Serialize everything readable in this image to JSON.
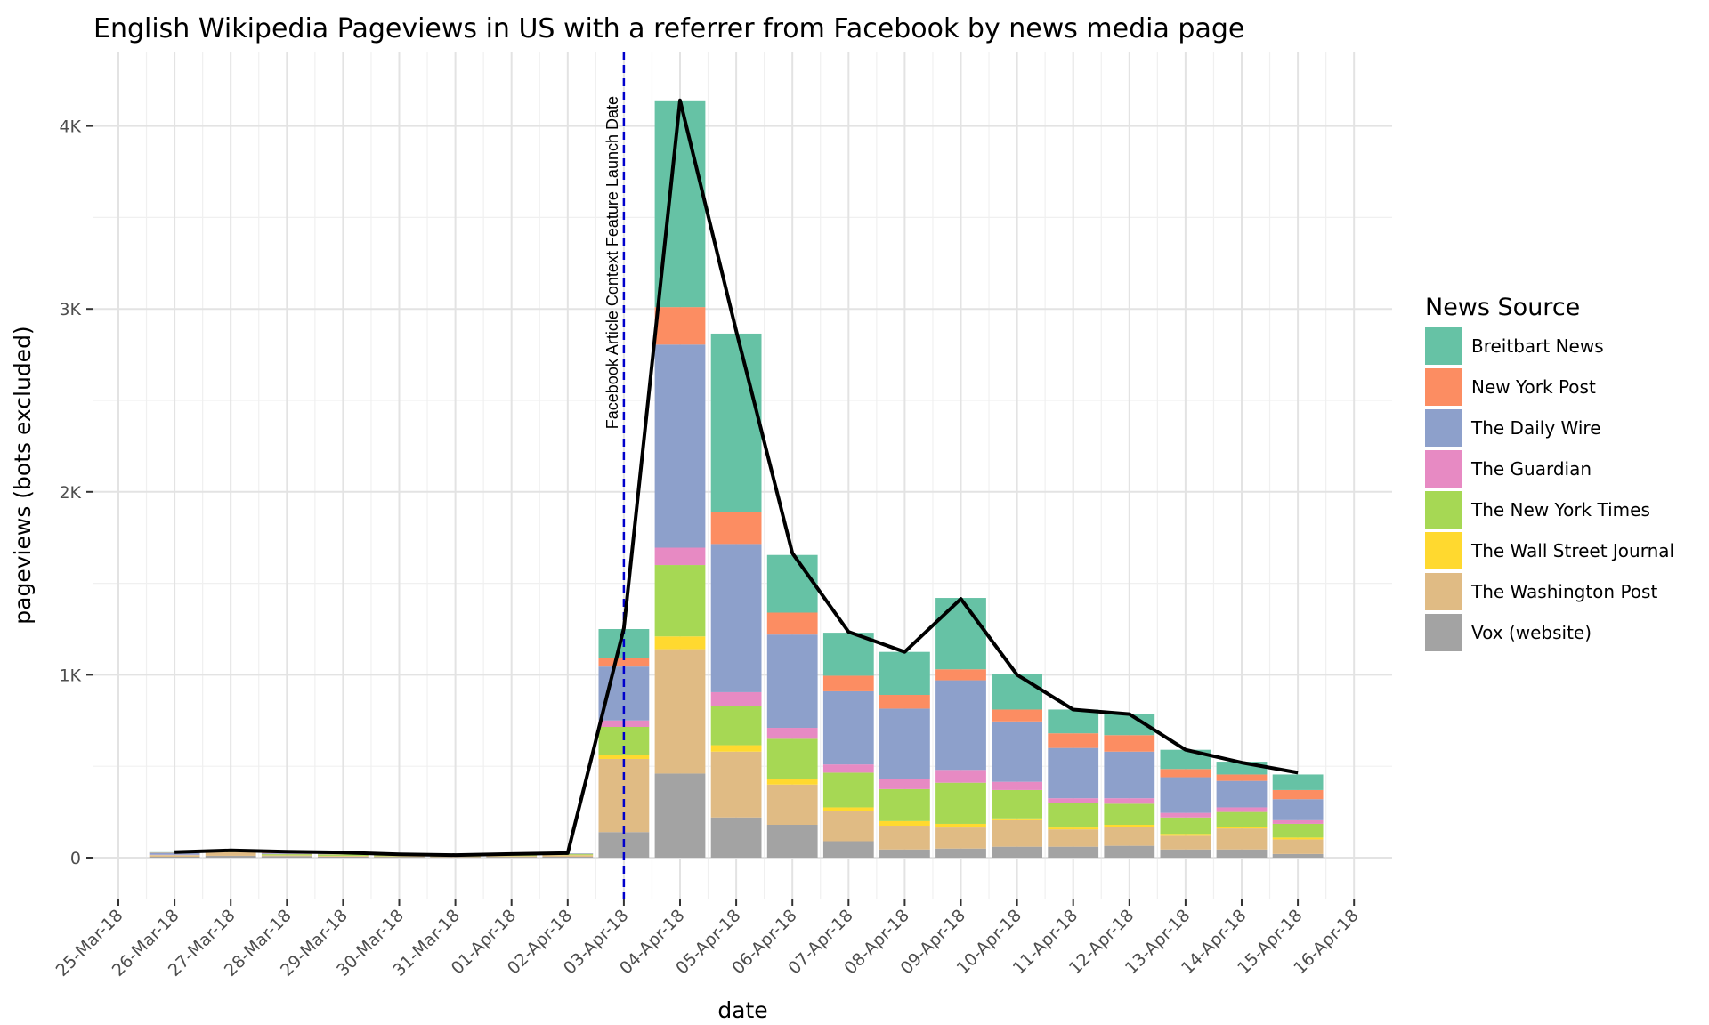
{
  "chart_data": {
    "type": "bar",
    "title": "English Wikipedia Pageviews in US with a referrer from Facebook by news media page",
    "xlabel": "date",
    "ylabel": "pageviews (bots excluded)",
    "x_tick_labels": [
      "25-Mar-18",
      "26-Mar-18",
      "27-Mar-18",
      "28-Mar-18",
      "29-Mar-18",
      "30-Mar-18",
      "31-Mar-18",
      "01-Apr-18",
      "02-Apr-18",
      "03-Apr-18",
      "04-Apr-18",
      "05-Apr-18",
      "06-Apr-18",
      "07-Apr-18",
      "08-Apr-18",
      "09-Apr-18",
      "10-Apr-18",
      "11-Apr-18",
      "12-Apr-18",
      "13-Apr-18",
      "14-Apr-18",
      "15-Apr-18",
      "16-Apr-18"
    ],
    "y_tick_labels": [
      "0",
      "1K",
      "2K",
      "3K",
      "4K"
    ],
    "y_ticks": [
      0,
      1000,
      2000,
      3000,
      4000
    ],
    "ylim": [
      -250,
      4380
    ],
    "xlim": [
      "24-Mar-18",
      "16-Apr-18"
    ],
    "grid": true,
    "stacked": true,
    "categories": [
      "26-Mar-18",
      "27-Mar-18",
      "28-Mar-18",
      "29-Mar-18",
      "30-Mar-18",
      "31-Mar-18",
      "01-Apr-18",
      "02-Apr-18",
      "03-Apr-18",
      "04-Apr-18",
      "05-Apr-18",
      "06-Apr-18",
      "07-Apr-18",
      "08-Apr-18",
      "09-Apr-18",
      "10-Apr-18",
      "11-Apr-18",
      "12-Apr-18",
      "13-Apr-18",
      "14-Apr-18",
      "15-Apr-18"
    ],
    "series": [
      {
        "name": "Vox (website)",
        "color": "#a3a3a3",
        "values": [
          5,
          10,
          8,
          5,
          4,
          3,
          4,
          5,
          140,
          460,
          220,
          180,
          90,
          45,
          50,
          60,
          60,
          65,
          45,
          45,
          20
        ]
      },
      {
        "name": "The Washington Post",
        "color": "#e0bb84",
        "values": [
          5,
          20,
          4,
          4,
          3,
          3,
          4,
          8,
          400,
          680,
          360,
          220,
          165,
          130,
          115,
          145,
          95,
          105,
          75,
          115,
          80
        ]
      },
      {
        "name": "The Wall Street Journal",
        "color": "#ffd92f",
        "values": [
          1,
          1,
          1,
          1,
          1,
          1,
          1,
          1,
          20,
          70,
          35,
          30,
          20,
          25,
          20,
          10,
          10,
          10,
          10,
          10,
          10
        ]
      },
      {
        "name": "The New York Times",
        "color": "#a6d854",
        "values": [
          2,
          3,
          6,
          8,
          4,
          3,
          3,
          5,
          155,
          390,
          215,
          220,
          190,
          175,
          225,
          155,
          135,
          115,
          90,
          80,
          75
        ]
      },
      {
        "name": "The Guardian",
        "color": "#e78ac3",
        "values": [
          3,
          3,
          2,
          2,
          1,
          1,
          1,
          1,
          35,
          95,
          75,
          60,
          45,
          55,
          70,
          45,
          25,
          30,
          25,
          25,
          20
        ]
      },
      {
        "name": "The Daily Wire",
        "color": "#8da0cb",
        "values": [
          10,
          3,
          4,
          4,
          2,
          2,
          2,
          2,
          295,
          1110,
          810,
          510,
          400,
          385,
          490,
          330,
          275,
          255,
          195,
          145,
          115
        ]
      },
      {
        "name": "New York Post",
        "color": "#fc8d62",
        "values": [
          2,
          2,
          2,
          2,
          1,
          1,
          1,
          1,
          45,
          205,
          175,
          120,
          85,
          75,
          60,
          65,
          80,
          90,
          45,
          35,
          50
        ]
      },
      {
        "name": "Breitbart News",
        "color": "#66c2a5",
        "values": [
          2,
          2,
          3,
          2,
          1,
          1,
          1,
          1,
          160,
          1130,
          975,
          315,
          235,
          235,
          390,
          195,
          130,
          115,
          105,
          70,
          85
        ]
      }
    ],
    "line": {
      "name": "total",
      "color": "#000000",
      "values": [
        30,
        40,
        33,
        28,
        18,
        14,
        20,
        25,
        1255,
        4140,
        2880,
        1665,
        1235,
        1125,
        1415,
        1000,
        810,
        785,
        590,
        520,
        465
      ]
    },
    "annotations": [
      {
        "type": "vline",
        "x": "03-Apr-18",
        "style": "dashed",
        "color": "#0000cc",
        "label": "Facebook Article Context Feature Launch Date"
      }
    ],
    "legend": {
      "title": "News Source",
      "placement": "right",
      "entries": [
        "Breitbart News",
        "New York Post",
        "The Daily Wire",
        "The Guardian",
        "The New York Times",
        "The Wall Street Journal",
        "The Washington Post",
        "Vox (website)"
      ]
    }
  }
}
